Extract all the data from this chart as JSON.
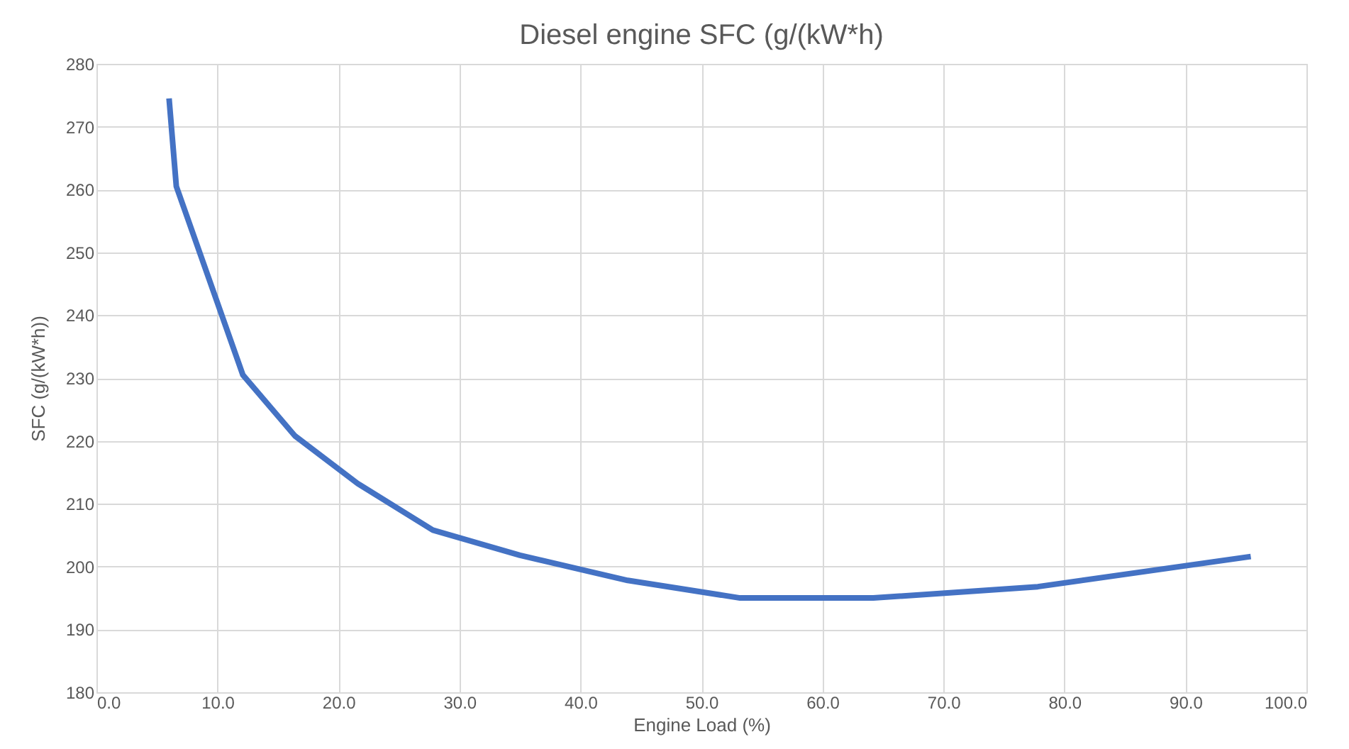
{
  "chart_data": {
    "type": "line",
    "title": "Diesel engine SFC (g/(kW*h)",
    "xlabel": "Engine Load (%)",
    "ylabel": "SFC (g/(kW*h))",
    "series": [
      {
        "color": "#4472c4",
        "x": [
          6.0,
          6.6,
          12.1,
          16.4,
          21.6,
          27.8,
          35.0,
          43.9,
          53.2,
          64.2,
          77.8,
          95.4
        ],
        "values": [
          274.5,
          260.5,
          230.5,
          220.8,
          213.2,
          205.8,
          201.8,
          197.8,
          195.0,
          195.0,
          196.8,
          201.6
        ]
      }
    ],
    "xlim": [
      0,
      100
    ],
    "xticks": [
      {
        "value": 0,
        "label": "0.0"
      },
      {
        "value": 10,
        "label": "10.0"
      },
      {
        "value": 20,
        "label": "20.0"
      },
      {
        "value": 30,
        "label": "30.0"
      },
      {
        "value": 40,
        "label": "40.0"
      },
      {
        "value": 50,
        "label": "50.0"
      },
      {
        "value": 60,
        "label": "60.0"
      },
      {
        "value": 70,
        "label": "70.0"
      },
      {
        "value": 80,
        "label": "80.0"
      },
      {
        "value": 90,
        "label": "90.0"
      },
      {
        "value": 100,
        "label": "100.0"
      }
    ],
    "ylim": [
      180,
      280
    ],
    "yticks": [
      180,
      190,
      200,
      210,
      220,
      230,
      240,
      250,
      260,
      270,
      280
    ],
    "grid": true,
    "marker": "none",
    "line_style": "solid"
  }
}
